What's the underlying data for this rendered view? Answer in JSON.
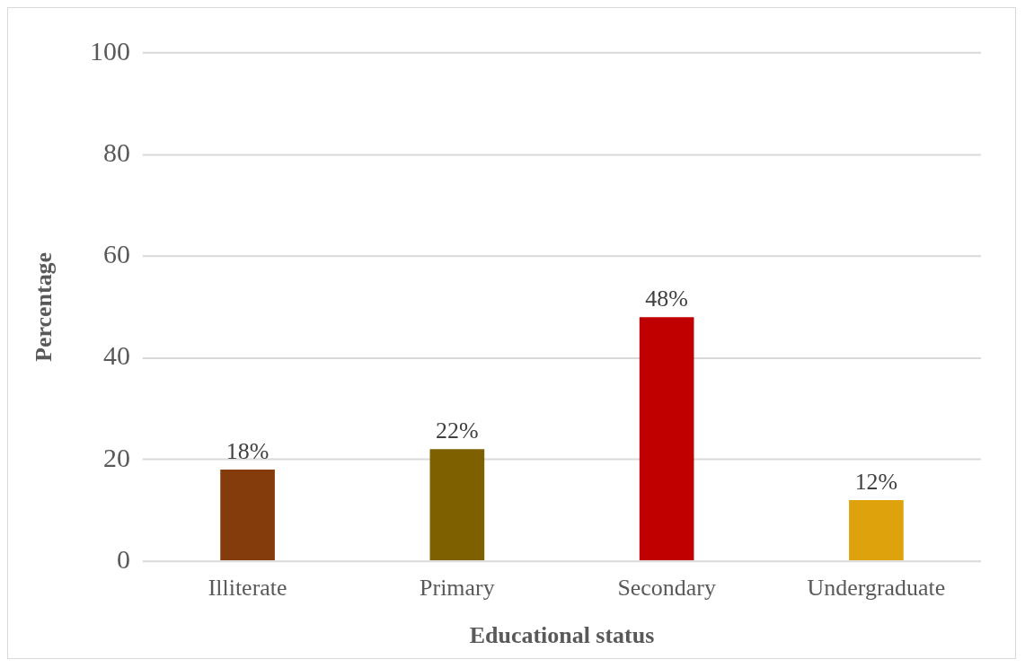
{
  "chart_data": {
    "type": "bar",
    "xlabel": "Educational status",
    "ylabel": "Percentage",
    "categories": [
      "Illiterate",
      "Primary",
      "Secondary",
      "Undergraduate"
    ],
    "values": [
      18,
      22,
      48,
      12
    ],
    "colors": [
      "#843c0c",
      "#7f6000",
      "#c00000",
      "#dea20c"
    ],
    "value_labels": [
      "18%",
      "22%",
      "48%",
      "12%"
    ],
    "ylim": [
      0,
      100
    ],
    "yticks": [
      0,
      20,
      40,
      60,
      80,
      100
    ],
    "grid": "y"
  }
}
